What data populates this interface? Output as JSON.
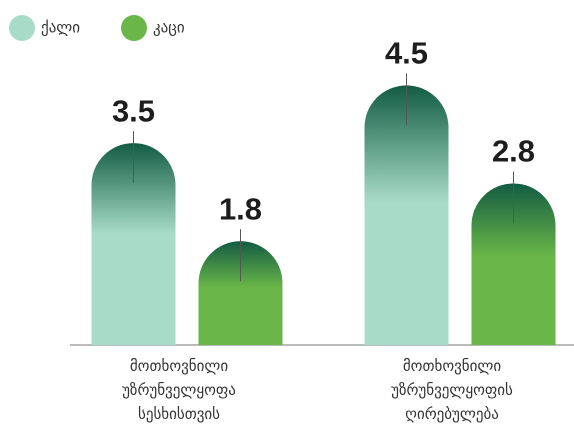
{
  "chart_data": {
    "type": "bar",
    "categories": [
      "მოთხოვნილი უზრუნველყოფა სესხისთვის",
      "მოთხოვნილი უზრუნველყოფის ღირებულება"
    ],
    "series": [
      {
        "name": "ქალი",
        "color": "#a8dcc8",
        "values": [
          3.5,
          4.5
        ]
      },
      {
        "name": "კაცი",
        "color": "#6ab648",
        "values": [
          1.8,
          2.8
        ]
      }
    ],
    "ylim": [
      0,
      5.2
    ],
    "legend": "top-left"
  }
}
